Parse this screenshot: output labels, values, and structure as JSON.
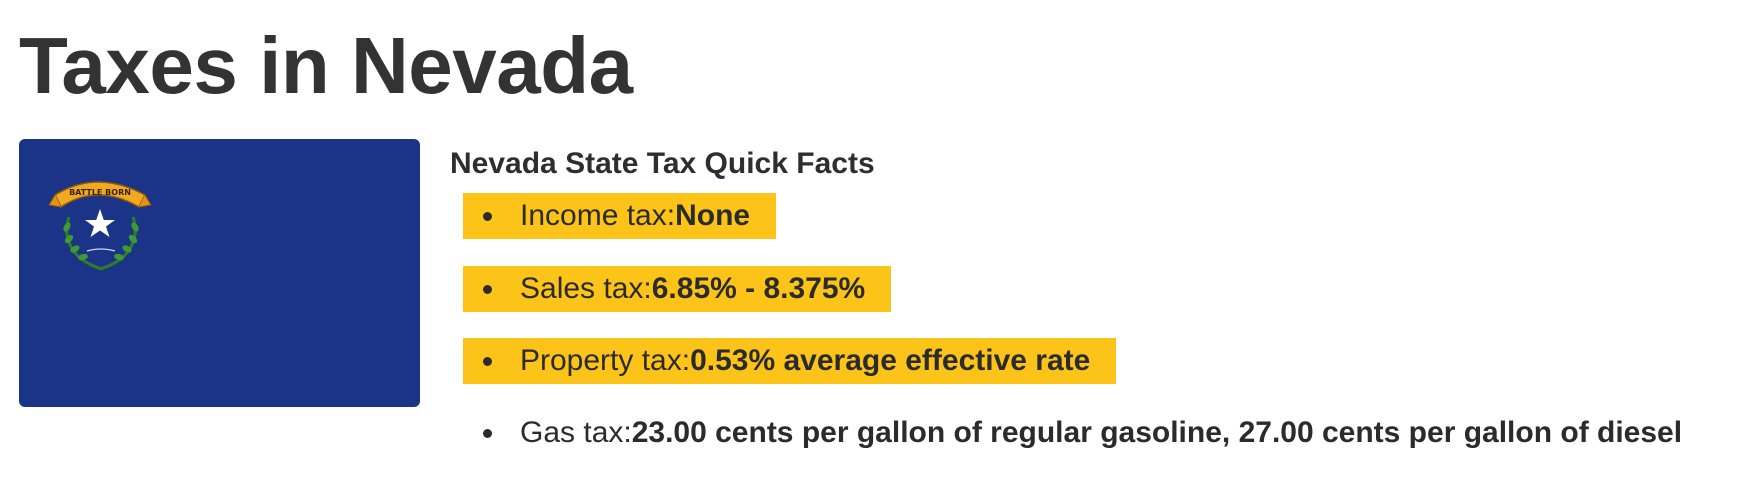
{
  "page": {
    "title": "Taxes in Nevada"
  },
  "flag": {
    "name": "Nevada state flag",
    "background_color": "#1b3487",
    "banner_text": "BATTLE BORN",
    "icon": "nevada-flag-icon"
  },
  "facts": {
    "title": "Nevada State Tax Quick Facts",
    "highlight_color": "#fcc318",
    "items": [
      {
        "label": "Income tax: ",
        "value": "None",
        "highlighted": true
      },
      {
        "label": "Sales tax: ",
        "value": "6.85% - 8.375%",
        "highlighted": true
      },
      {
        "label": "Property tax: ",
        "value": "0.53% average effective rate",
        "highlighted": true
      },
      {
        "label": "Gas tax: ",
        "value": "23.00 cents per gallon of regular gasoline, 27.00 cents per gallon of diesel",
        "highlighted": false
      }
    ]
  }
}
